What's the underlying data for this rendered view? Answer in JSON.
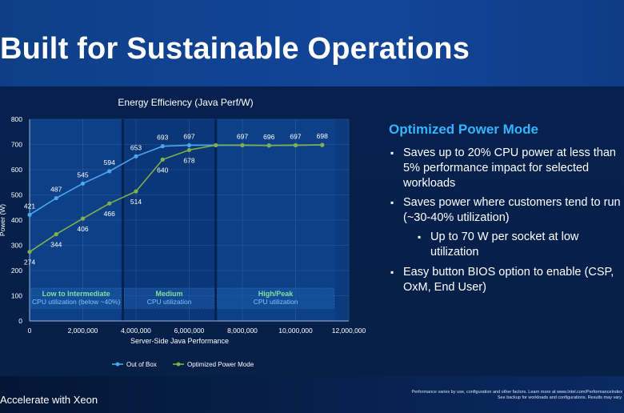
{
  "slide": {
    "title": "Built for Sustainable Operations",
    "footer_left": "Accelerate with Xeon",
    "footer_note_1": "Performance varies by use, configuration and other factors. Learn more at www.Intel.com/PerformanceIndex",
    "footer_note_2": "See backup for workloads and configurations. Results may vary."
  },
  "panel": {
    "title": "Optimized Power Mode",
    "bullets": [
      "Saves up to 20% CPU power at less than 5% performance impact for selected workloads",
      "Saves power where customers tend to run (~30-40% utilization)",
      "Easy button BIOS option to enable (CSP, OxM, End User)"
    ],
    "sub_bullets": [
      "Up to 70 W per socket at low utilization"
    ]
  },
  "colors": {
    "out_of_box": "#4aa8f0",
    "optimized": "#7fb04a",
    "accent_title": "#33b4ff",
    "region_label": "#7fe0a0"
  },
  "chart_data": {
    "type": "line",
    "title": "Energy Efficiency (Java Perf/W)",
    "xlabel": "Server-Side Java Performance",
    "ylabel": "Power (W)",
    "xlim": [
      0,
      12000000
    ],
    "ylim": [
      0,
      800
    ],
    "x_ticks": [
      0,
      2000000,
      4000000,
      6000000,
      8000000,
      10000000,
      12000000
    ],
    "x_tick_labels": [
      "0",
      "2,000,000",
      "4,000,000",
      "6,000,000",
      "8,000,000",
      "10,000,000",
      "12,000,000"
    ],
    "y_ticks": [
      0,
      100,
      200,
      300,
      400,
      500,
      600,
      700,
      800
    ],
    "y_tick_labels": [
      "0",
      "100",
      "200",
      "300",
      "400",
      "500",
      "600",
      "700",
      "800"
    ],
    "grid": true,
    "legend": "bottom",
    "series": [
      {
        "name": "Out of Box",
        "x": [
          0,
          1000000,
          2000000,
          3000000,
          4000000,
          5000000,
          6000000,
          7000000,
          8000000,
          9000000,
          10000000,
          11000000
        ],
        "values": [
          421,
          487,
          545,
          594,
          653,
          693,
          697,
          697,
          697,
          696,
          697,
          698
        ],
        "labels": [
          "421",
          "487",
          "545",
          "594",
          "653",
          "693",
          "697",
          "",
          "697",
          "696",
          "697",
          "698"
        ]
      },
      {
        "name": "Optimized Power Mode",
        "x": [
          0,
          1000000,
          2000000,
          3000000,
          4000000,
          5000000,
          6000000,
          7000000,
          8000000,
          9000000,
          10000000,
          11000000
        ],
        "values": [
          274,
          344,
          406,
          466,
          514,
          640,
          678,
          697,
          697,
          696,
          697,
          698
        ],
        "labels": [
          "274",
          "344",
          "406",
          "466",
          "514",
          "640",
          "678",
          "",
          "",
          "",
          "",
          ""
        ]
      }
    ],
    "regions": [
      {
        "x0": 0,
        "x1": 3500000,
        "title": "Low to Intermediate",
        "subtitle": "CPU utilization (below ~40%)"
      },
      {
        "x0": 3500000,
        "x1": 7000000,
        "title": "Medium",
        "subtitle": "CPU utilization"
      },
      {
        "x0": 7000000,
        "x1": 11500000,
        "title": "High/Peak",
        "subtitle": "CPU utilization"
      }
    ]
  }
}
